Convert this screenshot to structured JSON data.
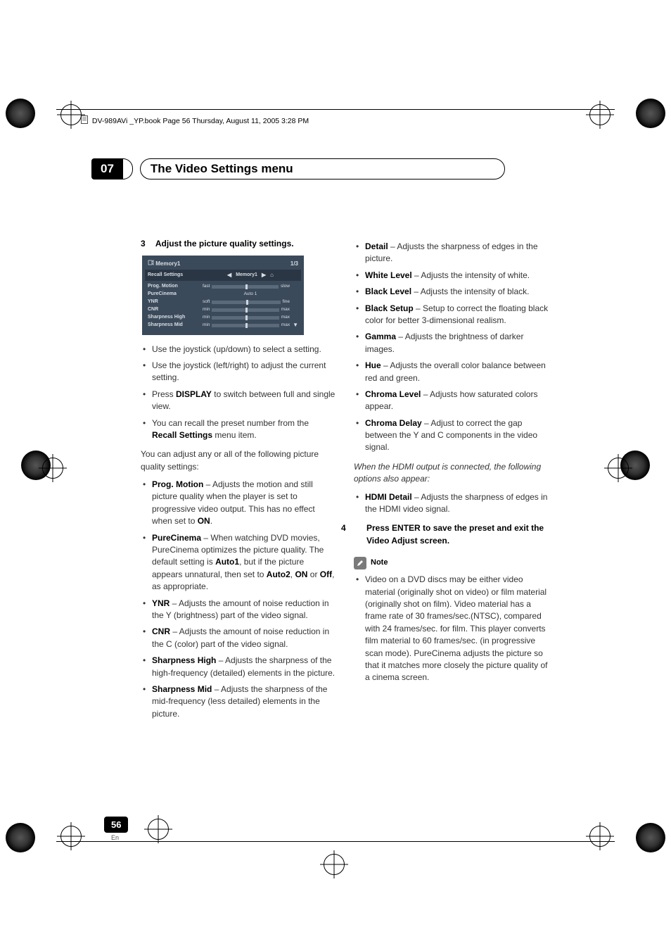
{
  "print": {
    "running_head": "DV-989AVi _YP.book  Page 56  Thursday, August 11, 2005  3:28 PM"
  },
  "chapter": {
    "number": "07",
    "title": "The Video Settings menu"
  },
  "left": {
    "step3": "Adjust the picture quality settings.",
    "step3_num": "3",
    "menu": {
      "title": "Memory1",
      "page": "1/3",
      "recall_label": "Recall Settings",
      "recall_value": "Memory1",
      "rows": [
        {
          "label": "Prog. Motion",
          "left": "fast",
          "right": "slow",
          "thumb": 50
        },
        {
          "label": "PureCinema",
          "center": "Auto 1"
        },
        {
          "label": "YNR",
          "left": "soft",
          "right": "fine",
          "thumb": 50
        },
        {
          "label": "CNR",
          "left": "min",
          "right": "max",
          "thumb": 50
        },
        {
          "label": "Sharpness High",
          "left": "min",
          "right": "max",
          "thumb": 50
        },
        {
          "label": "Sharpness Mid",
          "left": "min",
          "right": "max",
          "thumb": 50
        }
      ]
    },
    "tips": [
      "Use the joystick (up/down) to select a setting.",
      "Use the joystick (left/right) to adjust the current setting.",
      "Press |DISPLAY| to switch between full and single view.",
      "You can recall the preset number from the |Recall Settings| menu item."
    ],
    "intro": "You can adjust any or all of the following picture quality settings:",
    "settings": [
      {
        "name": "Prog. Motion",
        "desc": " – Adjusts the motion and still picture quality when the player is set to progressive video output. This has no effect when set to ",
        "tail": "ON",
        "post": "."
      },
      {
        "name": "PureCinema",
        "desc": " – When watching DVD movies, PureCinema optimizes the picture quality. The default setting is ",
        "mid": "Auto1",
        "desc2": ", but if the picture appears unnatural, then set to ",
        "opts": "Auto2, ON or Off",
        "post": ", as appropriate."
      },
      {
        "name": "YNR",
        "desc": " – Adjusts the amount of noise reduction in the Y (brightness) part of the video signal."
      },
      {
        "name": "CNR",
        "desc": " – Adjusts the amount of noise reduction in the C (color) part of the video signal."
      },
      {
        "name": "Sharpness High",
        "desc": " – Adjusts the sharpness of the high-frequency (detailed) elements in the picture."
      },
      {
        "name": "Sharpness Mid",
        "desc": " – Adjusts the sharpness of the mid-frequency (less detailed) elements in the picture."
      }
    ]
  },
  "right": {
    "settings": [
      {
        "name": "Detail",
        "desc": " – Adjusts the sharpness of edges in the picture."
      },
      {
        "name": "White Level",
        "desc": " – Adjusts the intensity of white."
      },
      {
        "name": "Black Level",
        "desc": " – Adjusts the intensity of black."
      },
      {
        "name": "Black Setup",
        "desc": " – Setup to correct the floating black color for better 3-dimensional realism."
      },
      {
        "name": "Gamma",
        "desc": " – Adjusts the brightness of darker images."
      },
      {
        "name": "Hue",
        "desc": " – Adjusts the overall color balance between red and green."
      },
      {
        "name": "Chroma Level",
        "desc": " – Adjusts how saturated colors appear."
      },
      {
        "name": "Chroma Delay",
        "desc": " – Adjust to correct the gap between the Y and C components in the video signal."
      }
    ],
    "hdmi_intro": "When the HDMI output is connected, the following options also appear:",
    "hdmi": {
      "name": "HDMI Detail",
      "desc": " – Adjusts the sharpness of edges in the HDMI video signal."
    },
    "step4_num": "4",
    "step4": "Press ENTER to save the preset and exit the Video Adjust screen.",
    "note_label": "Note",
    "note_body": "Video on a DVD discs may be either video material (originally shot on video) or film material (originally shot on film). Video material has a frame rate of 30 frames/sec.(NTSC), compared with 24 frames/sec. for film. This player converts film material to 60 frames/sec. (in progressive scan mode). PureCinema adjusts the picture so that it matches more closely the picture quality of a cinema screen."
  },
  "footer": {
    "page": "56",
    "lang": "En"
  },
  "colors": {
    "menu_bg": "#3b4a5a",
    "accent_black": "#000000"
  }
}
